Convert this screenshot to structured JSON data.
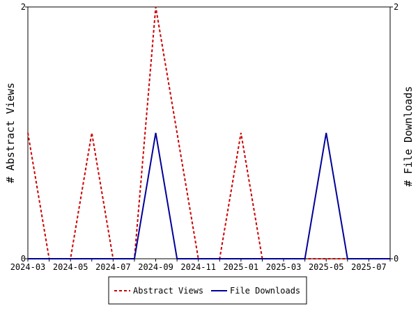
{
  "chart_data": {
    "type": "line",
    "x": [
      "2024-03",
      "2024-04",
      "2024-05",
      "2024-06",
      "2024-07",
      "2024-08",
      "2024-09",
      "2024-10",
      "2024-11",
      "2024-12",
      "2025-01",
      "2025-02",
      "2025-03",
      "2025-04",
      "2025-05",
      "2025-06",
      "2025-07",
      "2025-08"
    ],
    "x_tick_labels": [
      "2024-03",
      "2024-05",
      "2024-07",
      "2024-09",
      "2024-11",
      "2025-01",
      "2025-03",
      "2025-05",
      "2025-07"
    ],
    "series": [
      {
        "name": "Abstract Views",
        "axis": "left",
        "color": "#cc0000",
        "style": "dashed",
        "values": [
          1,
          0,
          0,
          1,
          0,
          0,
          2,
          1,
          0,
          0,
          1,
          0,
          0,
          0,
          0,
          0,
          0,
          0
        ]
      },
      {
        "name": "File Downloads",
        "axis": "right",
        "color": "#000099",
        "style": "solid",
        "values": [
          0,
          0,
          0,
          0,
          0,
          0,
          1,
          0,
          0,
          0,
          0,
          0,
          0,
          0,
          1,
          0,
          0,
          0
        ]
      }
    ],
    "ylabel_left": "# Abstract Views",
    "ylabel_right": "# File Downloads",
    "ylim_left": [
      0,
      2
    ],
    "ylim_right": [
      0,
      2
    ],
    "y_ticks_left": [
      "0",
      "2"
    ],
    "y_ticks_right": [
      "0",
      "2"
    ],
    "grid": false,
    "legend_position": "bottom-center"
  }
}
